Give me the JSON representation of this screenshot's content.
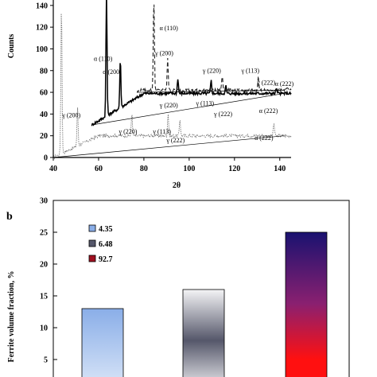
{
  "chart_data": [
    {
      "type": "line",
      "ylabel": "Counts",
      "xlabel": "2θ",
      "xlim": [
        40,
        145
      ],
      "ylim": [
        0,
        145
      ],
      "x_ticks": [
        40,
        60,
        80,
        100,
        120,
        140
      ],
      "y_ticks": [
        0,
        20,
        40,
        60,
        80,
        100,
        120,
        140
      ],
      "series": [
        {
          "style": "dotted",
          "offset_axis": {
            "from": [
              40,
              0
            ],
            "to": [
              60,
              20
            ]
          },
          "peaks": [
            {
              "x": 43.6,
              "height": 140
            },
            {
              "x": 50.7,
              "height": 35
            },
            {
              "x": 74.7,
              "height": 20
            },
            {
              "x": 90.7,
              "height": 21
            },
            {
              "x": 95.9,
              "height": 16
            },
            {
              "x": 137.4,
              "height": 12
            }
          ],
          "labels": [
            {
              "text": "γ (200)",
              "x": 48,
              "y": 37
            },
            {
              "text": "γ (220)",
              "x": 73,
              "y": 22
            },
            {
              "text": "γ (113)",
              "x": 88,
              "y": 22
            },
            {
              "text": "γ (222)",
              "x": 94,
              "y": 14
            },
            {
              "text": "α (222)",
              "x": 133,
              "y": 16
            }
          ]
        },
        {
          "style": "solid",
          "offset_axis": {
            "from": [
              57,
              30
            ],
            "to": [
              80,
              59
            ]
          },
          "peaks": [
            {
              "x": 63.5,
              "height": 115
            },
            {
              "x": 69.6,
              "height": 45
            },
            {
              "x": 95.0,
              "height": 14
            },
            {
              "x": 109.7,
              "height": 12
            },
            {
              "x": 116.2,
              "height": 7
            },
            {
              "x": 138.5,
              "height": 5
            }
          ],
          "labels": [
            {
              "text": "α (110)",
              "x": 62,
              "y": 89
            },
            {
              "text": "α (200)",
              "x": 66,
              "y": 77
            },
            {
              "text": "γ (220)",
              "x": 91,
              "y": 46
            },
            {
              "text": "γ (113)",
              "x": 107,
              "y": 48
            },
            {
              "text": "γ (222)",
              "x": 115,
              "y": 38
            },
            {
              "text": "α (222)",
              "x": 135,
              "y": 41
            }
          ]
        },
        {
          "style": "dashed",
          "offset_axis": {
            "from": [
              77,
              60
            ],
            "to": [
              78,
              62
            ]
          },
          "peaks": [
            {
              "x": 84.4,
              "height": 85
            },
            {
              "x": 90.5,
              "height": 30
            },
            {
              "x": 114.6,
              "height": 13
            },
            {
              "x": 130.5,
              "height": 12
            },
            {
              "x": 143.5,
              "height": 3
            }
          ],
          "labels": [
            {
              "text": "α (110)",
              "x": 91,
              "y": 117
            },
            {
              "text": "γ (200)",
              "x": 89,
              "y": 94
            },
            {
              "text": "γ (220)",
              "x": 110,
              "y": 78
            },
            {
              "text": "γ (113)",
              "x": 127,
              "y": 78
            },
            {
              "text": "γ (222)",
              "x": 134,
              "y": 67
            },
            {
              "text": "α (222)",
              "x": 142,
              "y": 66
            }
          ]
        }
      ]
    },
    {
      "type": "bar",
      "panel_label": "b",
      "ylabel": "Ferrite volume fraction, %",
      "ylim": [
        0,
        30
      ],
      "y_ticks": [
        5,
        10,
        15,
        20,
        25,
        30
      ],
      "categories": [
        "4.35",
        "6.48",
        "92.7"
      ],
      "values": [
        13,
        16,
        25
      ],
      "legend": {
        "position": "top-left",
        "entries": [
          "4.35",
          "6.48",
          "92.7"
        ]
      },
      "colors": {
        "bar1_top": "#8aaee8",
        "bar1_bottom": "#dde8f8",
        "bar2_edge": "#f4f4f6",
        "bar2_mid": "#55576a",
        "bar3_top": "#1a1270",
        "bar3_mid": "#8a2070",
        "bar3_bottom": "#ff1010",
        "legend3": "#a01020"
      }
    }
  ]
}
